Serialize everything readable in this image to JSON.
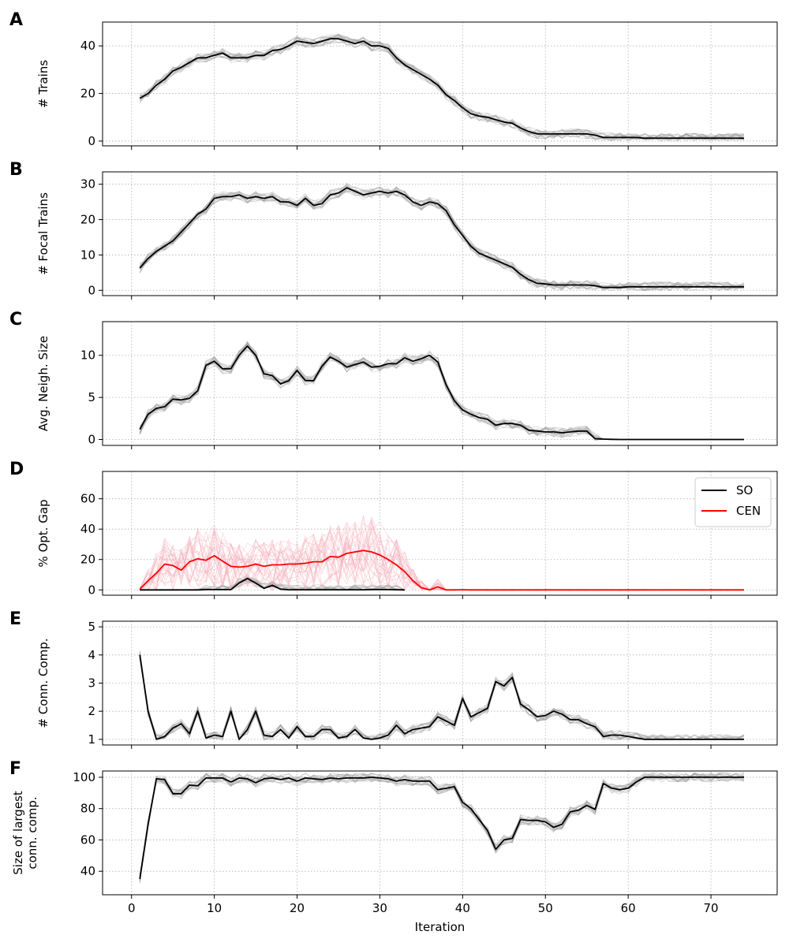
{
  "chart_data": [
    {
      "type": "line",
      "panel_label": "A",
      "ylabel": "# Trains",
      "ylim": [
        -2,
        50
      ],
      "yticks": [
        0,
        20,
        40
      ],
      "grid": true,
      "series": [
        {
          "color": "#000000",
          "x": [
            1,
            2,
            3,
            4,
            5,
            6,
            7,
            8,
            9,
            10,
            11,
            12,
            13,
            14,
            15,
            16,
            17,
            18,
            19,
            20,
            21,
            22,
            23,
            24,
            25,
            26,
            27,
            28,
            29,
            30,
            31,
            32,
            33,
            34,
            35,
            36,
            37,
            38,
            39,
            40,
            41,
            42,
            43,
            44,
            45,
            46,
            47,
            48,
            49,
            50,
            51,
            52,
            53,
            54,
            55,
            56,
            57,
            58,
            59,
            60,
            61,
            62,
            63,
            64,
            65,
            66,
            67,
            68,
            69,
            70,
            71,
            72,
            73,
            74
          ],
          "values": [
            18,
            20,
            23.5,
            26,
            29.5,
            31,
            33,
            35,
            35,
            36,
            37,
            35,
            35,
            35,
            36,
            36,
            38,
            38.5,
            40,
            42,
            41.5,
            41,
            42,
            43,
            43,
            42,
            41,
            42,
            40,
            40,
            39,
            35,
            32,
            30,
            28,
            26,
            23.5,
            19.5,
            17,
            14,
            11.5,
            10.5,
            10,
            9,
            8,
            7.5,
            5.5,
            4,
            3,
            3,
            3,
            3,
            3,
            3,
            3,
            2.5,
            1.5,
            1.5,
            1.5,
            1.5,
            1.5,
            1.2,
            1.2,
            1.2,
            1.2,
            1.2,
            1.2,
            1.2,
            1.2,
            1.2,
            1.2,
            1.2,
            1.2,
            1.2
          ]
        }
      ]
    },
    {
      "type": "line",
      "panel_label": "B",
      "ylabel": "# Focal Trains",
      "ylim": [
        -1.5,
        33.5
      ],
      "yticks": [
        0,
        10,
        20,
        30
      ],
      "grid": true,
      "series": [
        {
          "color": "#000000",
          "x": [
            1,
            2,
            3,
            4,
            5,
            6,
            7,
            8,
            9,
            10,
            11,
            12,
            13,
            14,
            15,
            16,
            17,
            18,
            19,
            20,
            21,
            22,
            23,
            24,
            25,
            26,
            27,
            28,
            29,
            30,
            31,
            32,
            33,
            34,
            35,
            36,
            37,
            38,
            39,
            40,
            41,
            42,
            43,
            44,
            45,
            46,
            47,
            48,
            49,
            50,
            51,
            52,
            53,
            54,
            55,
            56,
            57,
            58,
            59,
            60,
            61,
            62,
            63,
            64,
            65,
            66,
            67,
            68,
            69,
            70,
            71,
            72,
            73,
            74
          ],
          "values": [
            6.3,
            9,
            11,
            12.5,
            14,
            16.5,
            19,
            21.5,
            23,
            26,
            26.5,
            26.5,
            27,
            26,
            26.5,
            26,
            26.5,
            25,
            25,
            24,
            26,
            24,
            24.5,
            27,
            27.5,
            29,
            28,
            27,
            27.5,
            28,
            27.5,
            28,
            27,
            25,
            24,
            25,
            24.5,
            22.5,
            18.5,
            15.5,
            12.5,
            10.5,
            9.5,
            8.5,
            7.5,
            6.5,
            4.5,
            3,
            2,
            1.8,
            1.5,
            1.5,
            1.5,
            1.5,
            1.5,
            1.3,
            0.8,
            0.8,
            0.8,
            1,
            1,
            1,
            1,
            1,
            1,
            1,
            1,
            1,
            1,
            1,
            1,
            1,
            1,
            1
          ]
        }
      ]
    },
    {
      "type": "line",
      "panel_label": "C",
      "ylabel": "Avg. Neigh. Size",
      "ylim": [
        -0.7,
        14
      ],
      "yticks": [
        0,
        5,
        10
      ],
      "grid": true,
      "series": [
        {
          "color": "#000000",
          "x": [
            1,
            2,
            3,
            4,
            5,
            6,
            7,
            8,
            9,
            10,
            11,
            12,
            13,
            14,
            15,
            16,
            17,
            18,
            19,
            20,
            21,
            22,
            23,
            24,
            25,
            26,
            27,
            28,
            29,
            30,
            31,
            32,
            33,
            34,
            35,
            36,
            37,
            38,
            39,
            40,
            41,
            42,
            43,
            44,
            45,
            46,
            47,
            48,
            49,
            50,
            51,
            52,
            53,
            54,
            55,
            56,
            57,
            58,
            59,
            60,
            61,
            62,
            63,
            64,
            65,
            66,
            67,
            68,
            69,
            70,
            71,
            72,
            73,
            74
          ],
          "values": [
            1.2,
            3,
            3.7,
            3.9,
            4.8,
            4.7,
            4.9,
            5.8,
            8.8,
            9.3,
            8.4,
            8.4,
            10,
            11.1,
            10,
            7.8,
            7.6,
            6.6,
            7,
            8.2,
            7,
            7,
            8.7,
            9.8,
            9.3,
            8.6,
            8.9,
            9.2,
            8.6,
            8.7,
            9,
            9,
            9.7,
            9.3,
            9.6,
            10,
            9.2,
            6.5,
            4.6,
            3.5,
            3,
            2.6,
            2.4,
            1.7,
            1.9,
            1.9,
            1.7,
            1.1,
            1,
            0.9,
            0.9,
            0.8,
            0.9,
            1,
            1,
            0.1,
            0.05,
            0.02,
            0,
            0,
            0,
            0,
            0,
            0,
            0,
            0,
            0,
            0,
            0,
            0,
            0,
            0,
            0,
            0
          ]
        }
      ]
    },
    {
      "type": "line",
      "panel_label": "D",
      "ylabel": "% Opt. Gap",
      "ylim": [
        -3.5,
        78
      ],
      "yticks": [
        0,
        20,
        40,
        60
      ],
      "grid": true,
      "legend_position": "top-right",
      "series": [
        {
          "name": "SO",
          "color": "#000000",
          "x": [
            1,
            2,
            3,
            4,
            5,
            6,
            7,
            8,
            9,
            10,
            11,
            12,
            13,
            14,
            15,
            16,
            17,
            18,
            19,
            20,
            21,
            22,
            23,
            24,
            25,
            26,
            27,
            28,
            29,
            30,
            31,
            32,
            33
          ],
          "values": [
            0,
            0,
            0,
            0,
            0,
            0,
            0,
            0,
            0.2,
            0.2,
            0.2,
            0.2,
            4.5,
            7.5,
            4.5,
            1,
            3,
            0.5,
            0.1,
            0.1,
            0.1,
            0.1,
            0.1,
            0.1,
            0.1,
            0.1,
            0.1,
            0.1,
            0.2,
            0.2,
            0.2,
            0.1,
            0
          ]
        },
        {
          "name": "CEN",
          "color": "#ff0000",
          "x": [
            1,
            2,
            3,
            4,
            5,
            6,
            7,
            8,
            9,
            10,
            11,
            12,
            13,
            14,
            15,
            16,
            17,
            18,
            19,
            20,
            21,
            22,
            23,
            24,
            25,
            26,
            27,
            28,
            29,
            30,
            31,
            32,
            33,
            34,
            35,
            36,
            37,
            38,
            39,
            40,
            41,
            42,
            43,
            44,
            45,
            46,
            47,
            48,
            49,
            50,
            51,
            52,
            53,
            54,
            55,
            56,
            57,
            58,
            59,
            60,
            61,
            62,
            63,
            64,
            65,
            66,
            67,
            68,
            69,
            70,
            71,
            72,
            73,
            74
          ],
          "values": [
            0.5,
            6,
            11,
            17,
            16,
            13,
            18.5,
            20.5,
            19.5,
            22.5,
            19,
            15.5,
            15,
            15.5,
            17,
            15.5,
            16.5,
            16.5,
            17,
            17,
            17.5,
            18.5,
            18.5,
            22,
            21.5,
            24,
            25,
            26,
            25,
            23,
            20,
            16.5,
            12,
            6,
            1.5,
            0,
            2,
            0,
            0,
            0.1,
            0,
            0,
            0,
            0,
            0,
            0,
            0,
            0,
            0,
            0,
            0,
            0,
            0,
            0,
            0,
            0,
            0,
            0,
            0,
            0,
            0,
            0,
            0,
            0,
            0,
            0,
            0,
            0,
            0,
            0,
            0,
            0,
            0,
            0
          ]
        }
      ]
    },
    {
      "type": "line",
      "panel_label": "E",
      "ylabel": "# Conn. Comp.",
      "ylim": [
        0.8,
        5.2
      ],
      "yticks": [
        1,
        2,
        3,
        4,
        5
      ],
      "grid": true,
      "series": [
        {
          "color": "#000000",
          "x": [
            1,
            2,
            3,
            4,
            5,
            6,
            7,
            8,
            9,
            10,
            11,
            12,
            13,
            14,
            15,
            16,
            17,
            18,
            19,
            20,
            21,
            22,
            23,
            24,
            25,
            26,
            27,
            28,
            29,
            30,
            31,
            32,
            33,
            34,
            35,
            36,
            37,
            38,
            39,
            40,
            41,
            42,
            43,
            44,
            45,
            46,
            47,
            48,
            49,
            50,
            51,
            52,
            53,
            54,
            55,
            56,
            57,
            58,
            59,
            60,
            61,
            62,
            63,
            64,
            65,
            66,
            67,
            68,
            69,
            70,
            71,
            72,
            73,
            74
          ],
          "values": [
            4,
            2,
            1,
            1.1,
            1.4,
            1.55,
            1.2,
            2,
            1.05,
            1.15,
            1.1,
            2,
            1,
            1.35,
            2,
            1.15,
            1.1,
            1.35,
            1.05,
            1.45,
            1.1,
            1.1,
            1.35,
            1.35,
            1.05,
            1.1,
            1.35,
            1.05,
            1,
            1.05,
            1.15,
            1.5,
            1.2,
            1.35,
            1.4,
            1.45,
            1.8,
            1.65,
            1.5,
            2.45,
            1.8,
            1.95,
            2.1,
            3.05,
            2.9,
            3.2,
            2.25,
            2.05,
            1.8,
            1.85,
            2,
            1.9,
            1.7,
            1.7,
            1.55,
            1.45,
            1.1,
            1.15,
            1.15,
            1.1,
            1.05,
            1,
            1,
            1,
            1,
            1,
            1,
            1,
            1,
            1,
            1,
            1,
            1,
            1
          ]
        }
      ]
    },
    {
      "type": "line",
      "panel_label": "F",
      "ylabel": "Size of largest conn. comp.",
      "ylabel_lines": [
        "Size of largest",
        "conn. comp."
      ],
      "xlabel": "Iteration",
      "ylim": [
        25,
        104
      ],
      "yticks": [
        40,
        60,
        80,
        100
      ],
      "xlim": [
        -3.5,
        78
      ],
      "xticks": [
        0,
        10,
        20,
        30,
        40,
        50,
        60,
        70
      ],
      "grid": true,
      "series": [
        {
          "color": "#000000",
          "x": [
            1,
            2,
            3,
            4,
            5,
            6,
            7,
            8,
            9,
            10,
            11,
            12,
            13,
            14,
            15,
            16,
            17,
            18,
            19,
            20,
            21,
            22,
            23,
            24,
            25,
            26,
            27,
            28,
            29,
            30,
            31,
            32,
            33,
            34,
            35,
            36,
            37,
            38,
            39,
            40,
            41,
            42,
            43,
            44,
            45,
            46,
            47,
            48,
            49,
            50,
            51,
            52,
            53,
            54,
            55,
            56,
            57,
            58,
            59,
            60,
            61,
            62,
            63,
            64,
            65,
            66,
            67,
            68,
            69,
            70,
            71,
            72,
            73,
            74
          ],
          "values": [
            35,
            70,
            99,
            98.5,
            89.5,
            89.5,
            95,
            94.5,
            99.5,
            99.5,
            99.5,
            97,
            99.5,
            99,
            96.5,
            99,
            99.5,
            98.5,
            99.5,
            97.5,
            99.5,
            99,
            98.5,
            99.5,
            99,
            99.5,
            99.5,
            99.5,
            100,
            99.5,
            99,
            97.5,
            98.5,
            97.5,
            97.5,
            97.5,
            92,
            93,
            94,
            84,
            80,
            73,
            66,
            54,
            60,
            61,
            73,
            72.5,
            72.5,
            71.5,
            68,
            70,
            78,
            79,
            82,
            79.5,
            96,
            93,
            92,
            93,
            97,
            100,
            100,
            100,
            100,
            100,
            100,
            100,
            100,
            100,
            100,
            100,
            100,
            100
          ]
        }
      ]
    }
  ]
}
